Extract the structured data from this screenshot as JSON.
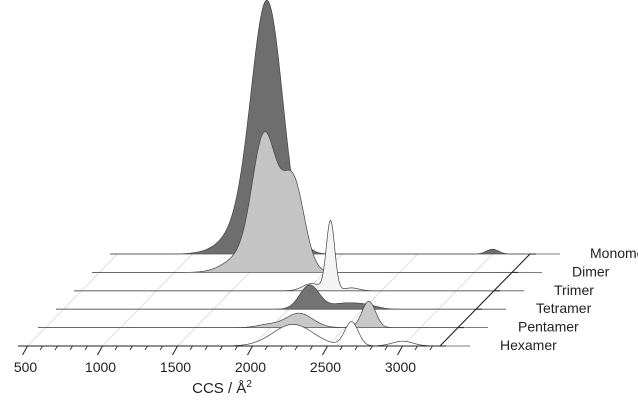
{
  "chart_data": {
    "type": "area",
    "style": "3d-waterfall",
    "xlabel": "CCS / Å",
    "xlabel_superscript": "2",
    "x_ticks": [
      500,
      1000,
      1500,
      2000,
      2500,
      3000
    ],
    "xlim": [
      450,
      3250
    ],
    "ylim": [
      0,
      1
    ],
    "grid": "diagonal depth lines",
    "legend": "right, one label per series row",
    "series": [
      {
        "name": "Monomer",
        "color": "#6e6e6e",
        "peaks": [
          {
            "x": 1500,
            "y": 1.0,
            "w": 105
          },
          {
            "x": 1350,
            "y": 0.1,
            "w": 140
          },
          {
            "x": 3000,
            "y": 0.02,
            "w": 40
          }
        ]
      },
      {
        "name": "Dimer",
        "color": "#c4c4c4",
        "peaks": [
          {
            "x": 1600,
            "y": 0.55,
            "w": 80
          },
          {
            "x": 1790,
            "y": 0.38,
            "w": 75
          },
          {
            "x": 1440,
            "y": 0.06,
            "w": 110
          }
        ]
      },
      {
        "name": "Trimer",
        "color": "#f4f4f4",
        "peaks": [
          {
            "x": 2160,
            "y": 0.29,
            "w": 28
          },
          {
            "x": 2035,
            "y": 0.03,
            "w": 60
          },
          {
            "x": 2300,
            "y": 0.012,
            "w": 50
          }
        ]
      },
      {
        "name": "Tetramer",
        "color": "#737373",
        "peaks": [
          {
            "x": 2140,
            "y": 0.1,
            "w": 65
          },
          {
            "x": 2380,
            "y": 0.025,
            "w": 100
          },
          {
            "x": 2530,
            "y": 0.012,
            "w": 70
          }
        ]
      },
      {
        "name": "Pentamer",
        "color": "#c8c8c8",
        "peaks": [
          {
            "x": 2190,
            "y": 0.06,
            "w": 90
          },
          {
            "x": 2655,
            "y": 0.11,
            "w": 45
          },
          {
            "x": 1980,
            "y": 0.012,
            "w": 70
          }
        ]
      },
      {
        "name": "Hexamer",
        "color": "#ffffff",
        "peaks": [
          {
            "x": 2270,
            "y": 0.09,
            "w": 135
          },
          {
            "x": 2660,
            "y": 0.1,
            "w": 45
          },
          {
            "x": 3000,
            "y": 0.02,
            "w": 70
          }
        ]
      }
    ]
  }
}
